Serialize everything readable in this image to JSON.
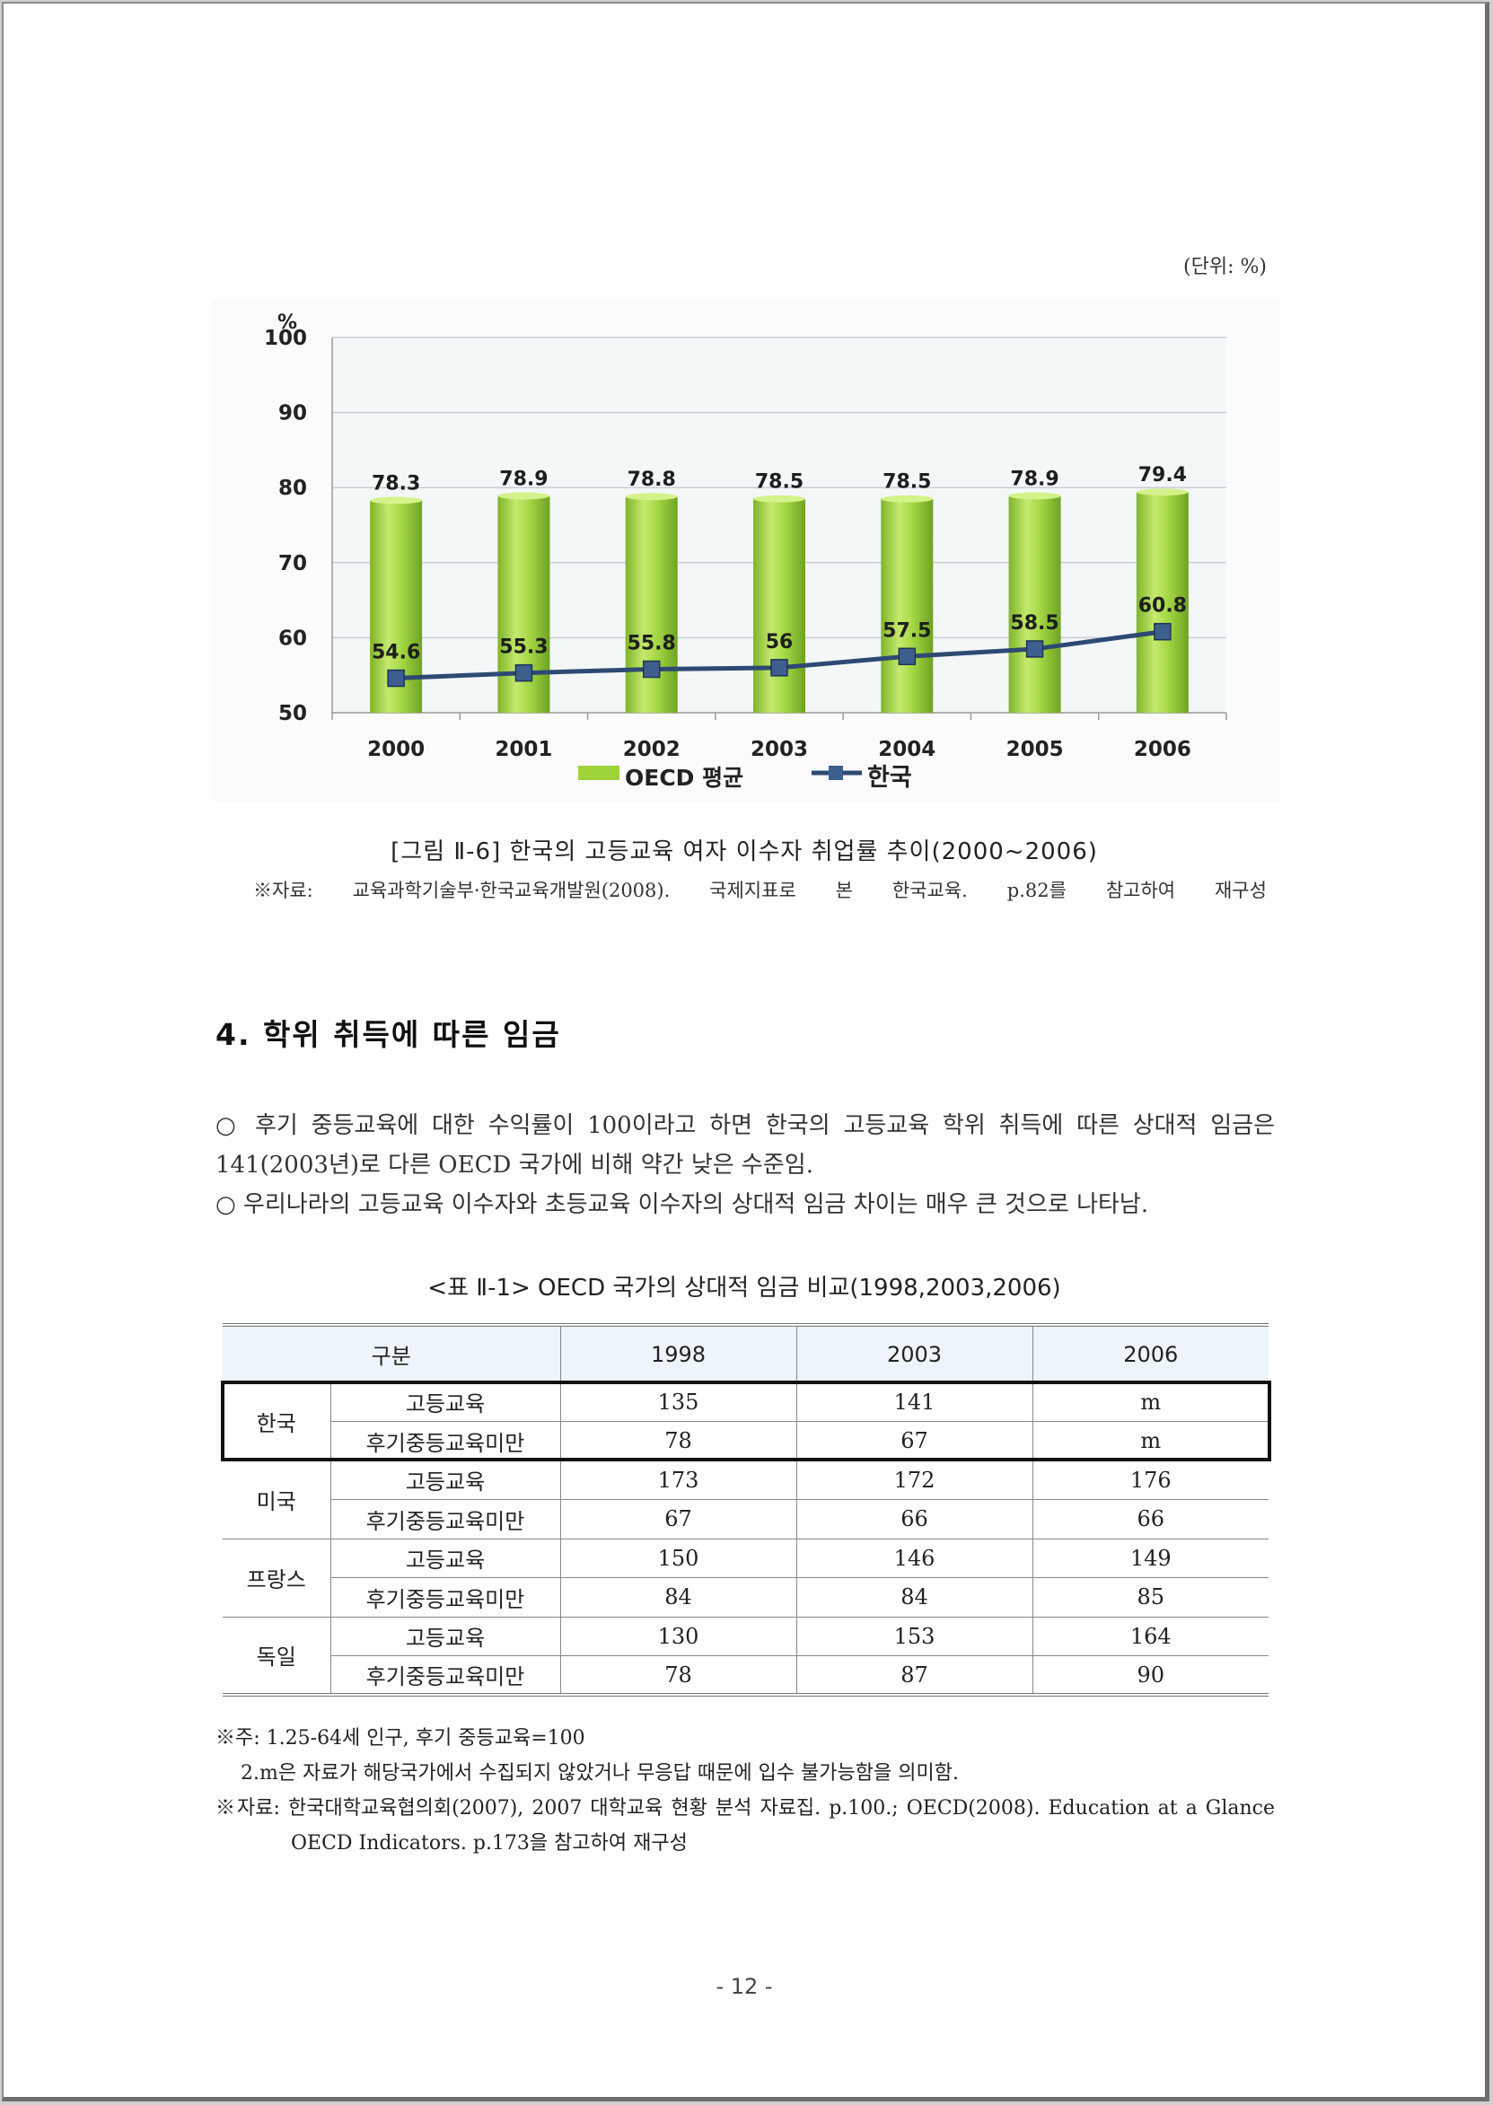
{
  "unit_label": "(단위: %)",
  "chart_data": {
    "type": "bar",
    "categories": [
      "2000",
      "2001",
      "2002",
      "2003",
      "2004",
      "2005",
      "2006"
    ],
    "series": [
      {
        "name": "OECD 평균",
        "type": "bar",
        "values": [
          78.3,
          78.9,
          78.8,
          78.5,
          78.5,
          78.9,
          79.4
        ],
        "color": "#9fd33a"
      },
      {
        "name": "한국",
        "type": "line",
        "values": [
          54.6,
          55.3,
          55.8,
          56.0,
          57.5,
          58.5,
          60.8
        ],
        "color": "#2e4a72"
      }
    ],
    "ylabel": "%",
    "ylim": [
      50,
      100
    ],
    "yticks": [
      "50",
      "60",
      "70",
      "80",
      "90",
      "100"
    ],
    "grid": true,
    "legend": "bottom"
  },
  "figure": {
    "caption": "[그림 Ⅱ-6] 한국의 고등교육 여자 이수자 취업률 추이(2000~2006)",
    "source_prefix": "※자료:",
    "source_parts": [
      "교육과학기술부·한국교육개발원(2008).",
      "국제지표로",
      "본",
      "한국교육.",
      "p.82를",
      "참고하여",
      "재구성"
    ]
  },
  "section_title": "4. 학위 취득에 따른 임금",
  "bullets": [
    "○ 후기 중등교육에 대한 수익률이 100이라고 하면 한국의 고등교육 학위 취득에 따른 상대적 임금은 141(2003년)로 다른 OECD 국가에 비해 약간 낮은 수준임.",
    "○ 우리나라의 고등교육 이수자와 초등교육 이수자의 상대적 임금 차이는 매우 큰 것으로 나타남."
  ],
  "table": {
    "caption": "<표 Ⅱ-1> OECD 국가의 상대적 임금 비교(1998,2003,2006)",
    "header": [
      "구분",
      "1998",
      "2003",
      "2006"
    ],
    "groups": [
      {
        "country": "한국",
        "rows": [
          {
            "label": "고등교육",
            "values": [
              "135",
              "141",
              "m"
            ]
          },
          {
            "label": "후기중등교육미만",
            "values": [
              "78",
              "67",
              "m"
            ]
          }
        ]
      },
      {
        "country": "미국",
        "rows": [
          {
            "label": "고등교육",
            "values": [
              "173",
              "172",
              "176"
            ]
          },
          {
            "label": "후기중등교육미만",
            "values": [
              "67",
              "66",
              "66"
            ]
          }
        ]
      },
      {
        "country": "프랑스",
        "rows": [
          {
            "label": "고등교육",
            "values": [
              "150",
              "146",
              "149"
            ]
          },
          {
            "label": "후기중등교육미만",
            "values": [
              "84",
              "84",
              "85"
            ]
          }
        ]
      },
      {
        "country": "독일",
        "rows": [
          {
            "label": "고등교육",
            "values": [
              "130",
              "153",
              "164"
            ]
          },
          {
            "label": "후기중등교육미만",
            "values": [
              "78",
              "87",
              "90"
            ]
          }
        ]
      }
    ]
  },
  "notes": {
    "note1": "※주: 1.25-64세 인구, 후기 중등교육=100",
    "note2": "2.m은 자료가 해당국가에서 수집되지 않았거나 무응답 때문에 입수 불가능함을 의미함.",
    "source_line1": "※자료: 한국대학교육협의회(2007), 2007 대학교육 현황 분석 자료집. p.100.; OECD(2008). Education at a Glance",
    "source_line2": "OECD Indicators. p.173을 참고하여 재구성"
  },
  "page_number": "- 12 -"
}
